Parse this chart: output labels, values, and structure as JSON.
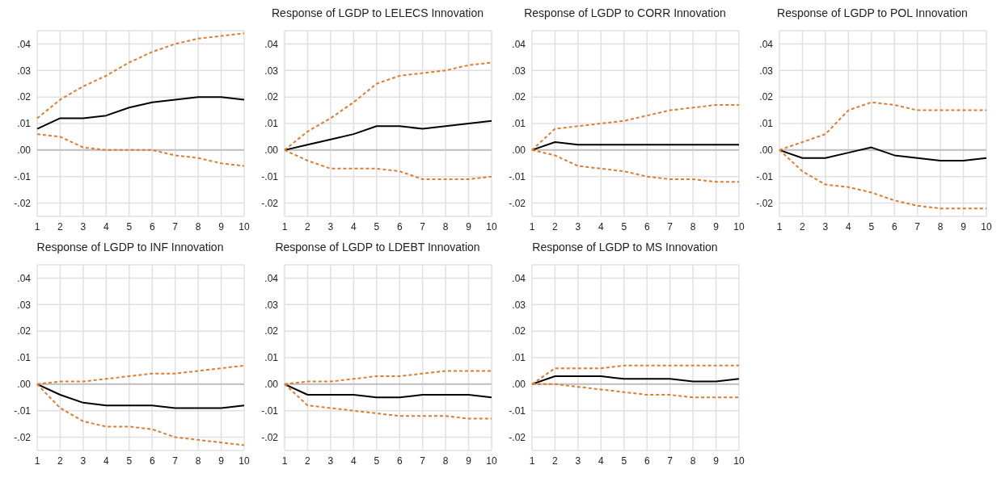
{
  "chart_data": [
    {
      "type": "line",
      "categories": [
        "1",
        "2",
        "3",
        "4",
        "5",
        "6",
        "7",
        "8",
        "9",
        "10"
      ],
      "ylim": [
        -0.025,
        0.045
      ],
      "yticks": [
        {
          "value": -0.02,
          "label": "-.02"
        },
        {
          "value": -0.01,
          "label": "-.01"
        },
        {
          "value": 0,
          "label": ".00"
        },
        {
          "value": 0.01,
          "label": ".01"
        },
        {
          "value": 0.02,
          "label": ".02"
        },
        {
          "value": 0.03,
          "label": ".03"
        },
        {
          "value": 0.04,
          "label": ".04"
        }
      ],
      "grid": true,
      "ref_lines": [
        {
          "axis": "y",
          "value": 0,
          "color": "#bfbfbf"
        }
      ],
      "series": [
        {
          "color": "#000000",
          "line_style": "solid",
          "values": [
            0.008,
            0.012,
            0.012,
            0.013,
            0.016,
            0.018,
            0.019,
            0.02,
            0.02,
            0.019
          ]
        },
        {
          "color": "#e07b30",
          "line_style": "dashed",
          "values": [
            0.012,
            0.019,
            0.024,
            0.028,
            0.033,
            0.037,
            0.04,
            0.042,
            0.043,
            0.044
          ]
        },
        {
          "color": "#e07b30",
          "line_style": "dashed",
          "values": [
            0.006,
            0.005,
            0.001,
            0.0,
            0.0,
            0.0,
            -0.002,
            -0.003,
            -0.005,
            -0.006
          ]
        }
      ]
    },
    {
      "type": "line",
      "title": "Response of LGDP to LELECS Innovation",
      "categories": [
        "1",
        "2",
        "3",
        "4",
        "5",
        "6",
        "7",
        "8",
        "9",
        "10"
      ],
      "ylim": [
        -0.025,
        0.045
      ],
      "yticks": [
        {
          "value": -0.02,
          "label": "-.02"
        },
        {
          "value": -0.01,
          "label": "-.01"
        },
        {
          "value": 0,
          "label": ".00"
        },
        {
          "value": 0.01,
          "label": ".01"
        },
        {
          "value": 0.02,
          "label": ".02"
        },
        {
          "value": 0.03,
          "label": ".03"
        },
        {
          "value": 0.04,
          "label": ".04"
        }
      ],
      "grid": true,
      "ref_lines": [
        {
          "axis": "y",
          "value": 0,
          "color": "#bfbfbf"
        }
      ],
      "series": [
        {
          "color": "#000000",
          "line_style": "solid",
          "values": [
            0,
            0.002,
            0.004,
            0.006,
            0.009,
            0.009,
            0.008,
            0.009,
            0.01,
            0.011
          ]
        },
        {
          "color": "#e07b30",
          "line_style": "dashed",
          "values": [
            0,
            0.007,
            0.012,
            0.018,
            0.025,
            0.028,
            0.029,
            0.03,
            0.032,
            0.033
          ]
        },
        {
          "color": "#e07b30",
          "line_style": "dashed",
          "values": [
            0,
            -0.004,
            -0.007,
            -0.007,
            -0.007,
            -0.008,
            -0.011,
            -0.011,
            -0.011,
            -0.01
          ]
        }
      ]
    },
    {
      "type": "line",
      "title": "Response of LGDP to CORR Innovation",
      "categories": [
        "1",
        "2",
        "3",
        "4",
        "5",
        "6",
        "7",
        "8",
        "9",
        "10"
      ],
      "ylim": [
        -0.025,
        0.045
      ],
      "yticks": [
        {
          "value": -0.02,
          "label": "-.02"
        },
        {
          "value": -0.01,
          "label": "-.01"
        },
        {
          "value": 0,
          "label": ".00"
        },
        {
          "value": 0.01,
          "label": ".01"
        },
        {
          "value": 0.02,
          "label": ".02"
        },
        {
          "value": 0.03,
          "label": ".03"
        },
        {
          "value": 0.04,
          "label": ".04"
        }
      ],
      "grid": true,
      "ref_lines": [
        {
          "axis": "y",
          "value": 0,
          "color": "#bfbfbf"
        }
      ],
      "series": [
        {
          "color": "#000000",
          "line_style": "solid",
          "values": [
            0,
            0.003,
            0.002,
            0.002,
            0.002,
            0.002,
            0.002,
            0.002,
            0.002,
            0.002
          ]
        },
        {
          "color": "#e07b30",
          "line_style": "dashed",
          "values": [
            0,
            0.008,
            0.009,
            0.01,
            0.011,
            0.013,
            0.015,
            0.016,
            0.017,
            0.017
          ]
        },
        {
          "color": "#e07b30",
          "line_style": "dashed",
          "values": [
            0,
            -0.002,
            -0.006,
            -0.007,
            -0.008,
            -0.01,
            -0.011,
            -0.011,
            -0.012,
            -0.012
          ]
        }
      ]
    },
    {
      "type": "line",
      "title": "Response of LGDP to POL Innovation",
      "categories": [
        "1",
        "2",
        "3",
        "4",
        "5",
        "6",
        "7",
        "8",
        "9",
        "10"
      ],
      "ylim": [
        -0.025,
        0.045
      ],
      "yticks": [
        {
          "value": -0.02,
          "label": "-.02"
        },
        {
          "value": -0.01,
          "label": "-.01"
        },
        {
          "value": 0,
          "label": ".00"
        },
        {
          "value": 0.01,
          "label": ".01"
        },
        {
          "value": 0.02,
          "label": ".02"
        },
        {
          "value": 0.03,
          "label": ".03"
        },
        {
          "value": 0.04,
          "label": ".04"
        }
      ],
      "grid": true,
      "ref_lines": [
        {
          "axis": "y",
          "value": 0,
          "color": "#bfbfbf"
        }
      ],
      "series": [
        {
          "color": "#000000",
          "line_style": "solid",
          "values": [
            0,
            -0.003,
            -0.003,
            -0.001,
            0.001,
            -0.002,
            -0.003,
            -0.004,
            -0.004,
            -0.003
          ]
        },
        {
          "color": "#e07b30",
          "line_style": "dashed",
          "values": [
            0,
            0.003,
            0.006,
            0.015,
            0.018,
            0.017,
            0.015,
            0.015,
            0.015,
            0.015
          ]
        },
        {
          "color": "#e07b30",
          "line_style": "dashed",
          "values": [
            0,
            -0.008,
            -0.013,
            -0.014,
            -0.016,
            -0.019,
            -0.021,
            -0.022,
            -0.022,
            -0.022
          ]
        }
      ]
    },
    {
      "type": "line",
      "title": "Response of LGDP to INF Innovation",
      "categories": [
        "1",
        "2",
        "3",
        "4",
        "5",
        "6",
        "7",
        "8",
        "9",
        "10"
      ],
      "ylim": [
        -0.025,
        0.045
      ],
      "yticks": [
        {
          "value": -0.02,
          "label": "-.02"
        },
        {
          "value": -0.01,
          "label": "-.01"
        },
        {
          "value": 0,
          "label": ".00"
        },
        {
          "value": 0.01,
          "label": ".01"
        },
        {
          "value": 0.02,
          "label": ".02"
        },
        {
          "value": 0.03,
          "label": ".03"
        },
        {
          "value": 0.04,
          "label": ".04"
        }
      ],
      "grid": true,
      "ref_lines": [
        {
          "axis": "y",
          "value": 0,
          "color": "#bfbfbf"
        }
      ],
      "series": [
        {
          "color": "#000000",
          "line_style": "solid",
          "values": [
            0,
            -0.004,
            -0.007,
            -0.008,
            -0.008,
            -0.008,
            -0.009,
            -0.009,
            -0.009,
            -0.008
          ]
        },
        {
          "color": "#e07b30",
          "line_style": "dashed",
          "values": [
            0,
            0.001,
            0.001,
            0.002,
            0.003,
            0.004,
            0.004,
            0.005,
            0.006,
            0.007
          ]
        },
        {
          "color": "#e07b30",
          "line_style": "dashed",
          "values": [
            0,
            -0.009,
            -0.014,
            -0.016,
            -0.016,
            -0.017,
            -0.02,
            -0.021,
            -0.022,
            -0.023
          ]
        }
      ]
    },
    {
      "type": "line",
      "title": "Response of LGDP to LDEBT Innovation",
      "categories": [
        "1",
        "2",
        "3",
        "4",
        "5",
        "6",
        "7",
        "8",
        "9",
        "10"
      ],
      "ylim": [
        -0.025,
        0.045
      ],
      "yticks": [
        {
          "value": -0.02,
          "label": "-.02"
        },
        {
          "value": -0.01,
          "label": "-.01"
        },
        {
          "value": 0,
          "label": ".00"
        },
        {
          "value": 0.01,
          "label": ".01"
        },
        {
          "value": 0.02,
          "label": ".02"
        },
        {
          "value": 0.03,
          "label": ".03"
        },
        {
          "value": 0.04,
          "label": ".04"
        }
      ],
      "grid": true,
      "ref_lines": [
        {
          "axis": "y",
          "value": 0,
          "color": "#bfbfbf"
        }
      ],
      "series": [
        {
          "color": "#000000",
          "line_style": "solid",
          "values": [
            0,
            -0.004,
            -0.004,
            -0.004,
            -0.005,
            -0.005,
            -0.004,
            -0.004,
            -0.004,
            -0.005
          ]
        },
        {
          "color": "#e07b30",
          "line_style": "dashed",
          "values": [
            0,
            0.001,
            0.001,
            0.002,
            0.003,
            0.003,
            0.004,
            0.005,
            0.005,
            0.005
          ]
        },
        {
          "color": "#e07b30",
          "line_style": "dashed",
          "values": [
            0,
            -0.008,
            -0.009,
            -0.01,
            -0.011,
            -0.012,
            -0.012,
            -0.012,
            -0.013,
            -0.013
          ]
        }
      ]
    },
    {
      "type": "line",
      "title": "Response of LGDP to MS Innovation",
      "categories": [
        "1",
        "2",
        "3",
        "4",
        "5",
        "6",
        "7",
        "8",
        "9",
        "10"
      ],
      "ylim": [
        -0.025,
        0.045
      ],
      "yticks": [
        {
          "value": -0.02,
          "label": "-.02"
        },
        {
          "value": -0.01,
          "label": "-.01"
        },
        {
          "value": 0,
          "label": ".00"
        },
        {
          "value": 0.01,
          "label": ".01"
        },
        {
          "value": 0.02,
          "label": ".02"
        },
        {
          "value": 0.03,
          "label": ".03"
        },
        {
          "value": 0.04,
          "label": ".04"
        }
      ],
      "grid": true,
      "ref_lines": [
        {
          "axis": "y",
          "value": 0,
          "color": "#bfbfbf"
        }
      ],
      "series": [
        {
          "color": "#000000",
          "line_style": "solid",
          "values": [
            0,
            0.003,
            0.003,
            0.003,
            0.002,
            0.002,
            0.002,
            0.001,
            0.001,
            0.002
          ]
        },
        {
          "color": "#e07b30",
          "line_style": "dashed",
          "values": [
            0,
            0.006,
            0.006,
            0.006,
            0.007,
            0.007,
            0.007,
            0.007,
            0.007,
            0.007
          ]
        },
        {
          "color": "#e07b30",
          "line_style": "dashed",
          "values": [
            0,
            0.0,
            -0.001,
            -0.002,
            -0.003,
            -0.004,
            -0.004,
            -0.005,
            -0.005,
            -0.005
          ]
        }
      ]
    }
  ]
}
